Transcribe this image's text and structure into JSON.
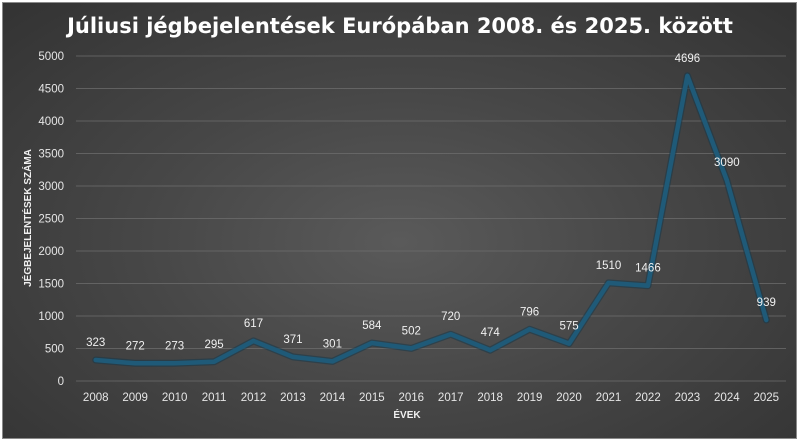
{
  "chart_data": {
    "type": "line",
    "title": "Júliusi jégbejelentések Európában 2008. és 2025. között",
    "xlabel": "ÉVEK",
    "ylabel": "JÉGBEJELENTÉSEK SZÁMA",
    "categories": [
      "2008",
      "2009",
      "2010",
      "2011",
      "2012",
      "2013",
      "2014",
      "2015",
      "2016",
      "2017",
      "2018",
      "2019",
      "2020",
      "2021",
      "2022",
      "2023",
      "2024",
      "2025"
    ],
    "series": [
      {
        "values": [
          323,
          272,
          273,
          295,
          617,
          371,
          301,
          584,
          502,
          720,
          474,
          796,
          575,
          1510,
          1466,
          4696,
          3090,
          939
        ]
      }
    ],
    "ylim": [
      0,
      5000
    ],
    "yticks": [
      0,
      500,
      1000,
      1500,
      2000,
      2500,
      3000,
      3500,
      4000,
      4500,
      5000
    ],
    "grid": true,
    "legend": "none",
    "line_color": "#1f5a78"
  }
}
